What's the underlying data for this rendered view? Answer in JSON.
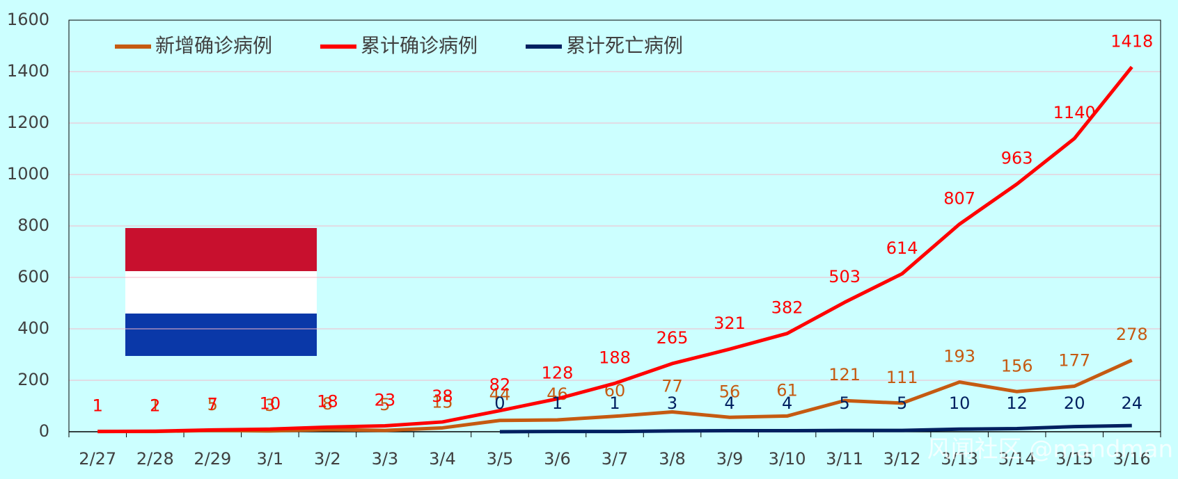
{
  "chart_data": {
    "type": "line",
    "categories": [
      "2/27",
      "2/28",
      "2/29",
      "3/1",
      "3/2",
      "3/3",
      "3/4",
      "3/5",
      "3/6",
      "3/7",
      "3/8",
      "3/9",
      "3/10",
      "3/11",
      "3/12",
      "3/13",
      "3/14",
      "3/15",
      "3/16"
    ],
    "series": [
      {
        "name": "新增确诊病例",
        "color": "#c55a11",
        "values": [
          1,
          1,
          5,
          3,
          8,
          5,
          15,
          44,
          46,
          60,
          77,
          56,
          61,
          121,
          111,
          193,
          156,
          177,
          278
        ]
      },
      {
        "name": "累计确诊病例",
        "color": "#ff0000",
        "values": [
          1,
          2,
          7,
          10,
          18,
          23,
          38,
          82,
          128,
          188,
          265,
          321,
          382,
          503,
          614,
          807,
          963,
          1140,
          1418
        ]
      },
      {
        "name": "累计死亡病例",
        "color": "#002060",
        "values": [
          null,
          null,
          null,
          null,
          null,
          null,
          null,
          0,
          1,
          1,
          3,
          4,
          4,
          5,
          5,
          10,
          12,
          20,
          24
        ]
      }
    ],
    "ylim": [
      0,
      1600
    ],
    "yticks": [
      0,
      200,
      400,
      600,
      800,
      1000,
      1200,
      1400,
      1600
    ],
    "grid": true,
    "legend": "top-left",
    "watermark": "风闻社区 @mandman"
  }
}
